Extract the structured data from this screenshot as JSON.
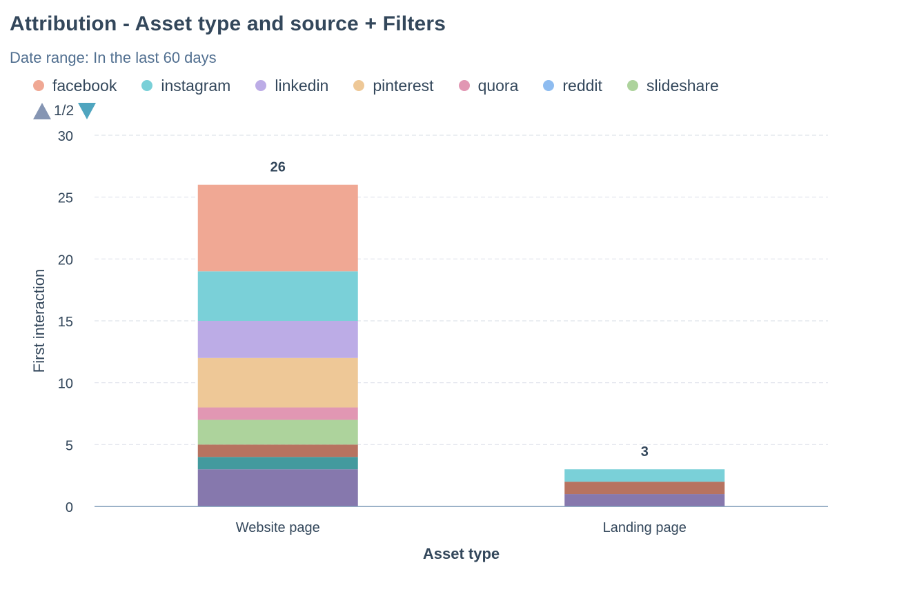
{
  "title": "Attribution - Asset type and source + Filters",
  "subtitle": "Date range: In the last 60 days",
  "legend": {
    "items": [
      {
        "label": "facebook",
        "color": "#f0a894"
      },
      {
        "label": "instagram",
        "color": "#7ad0d8"
      },
      {
        "label": "linkedin",
        "color": "#bcace6"
      },
      {
        "label": "pinterest",
        "color": "#eec897"
      },
      {
        "label": "quora",
        "color": "#e197b3"
      },
      {
        "label": "reddit",
        "color": "#8ebcf0"
      },
      {
        "label": "slideshare",
        "color": "#add39c"
      }
    ],
    "page": "1/2"
  },
  "chart_data": {
    "type": "bar",
    "stacked": true,
    "categories": [
      "Website page",
      "Landing page"
    ],
    "totals": [
      26,
      3
    ],
    "xlabel": "Asset type",
    "ylabel": "First interaction",
    "ylim": [
      0,
      30
    ],
    "yticks": [
      0,
      5,
      10,
      15,
      20,
      25,
      30
    ],
    "grid": true,
    "legend_position": "top",
    "series": [
      {
        "color": "#8678ad",
        "values": [
          3,
          1
        ]
      },
      {
        "color": "#439a9e",
        "values": [
          1,
          0
        ]
      },
      {
        "color": "#b77360",
        "values": [
          1,
          1
        ]
      },
      {
        "name": "slideshare",
        "color": "#add39c",
        "values": [
          2,
          0
        ]
      },
      {
        "name": "quora",
        "color": "#e197b3",
        "values": [
          1,
          0
        ]
      },
      {
        "name": "pinterest",
        "color": "#eec897",
        "values": [
          4,
          0
        ]
      },
      {
        "name": "linkedin",
        "color": "#bcace6",
        "values": [
          3,
          0
        ]
      },
      {
        "name": "instagram",
        "color": "#7ad0d8",
        "values": [
          4,
          1
        ]
      },
      {
        "name": "facebook",
        "color": "#f0a894",
        "values": [
          7,
          0
        ]
      }
    ]
  }
}
